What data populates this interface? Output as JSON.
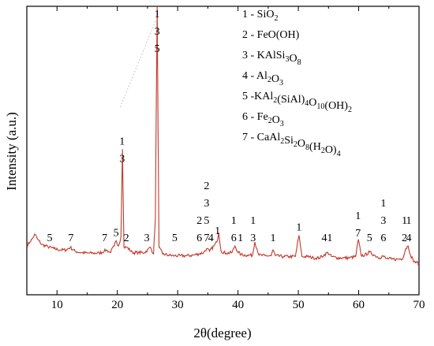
{
  "chart_data": {
    "type": "line",
    "xlabel": "2θ(degree)",
    "ylabel": "Intensity (a.u.)",
    "xlim": [
      5,
      70
    ],
    "xticks": [
      10,
      20,
      30,
      40,
      50,
      60,
      70
    ],
    "yticks_shown": false,
    "grid": false,
    "legend_position": "top-right",
    "line_color": "#c0392b",
    "series": [
      {
        "values_note": "",
        "x": [
          5,
          5.5,
          6,
          6.3,
          6.8,
          7.5,
          8.5,
          9.5,
          10.5,
          11.5,
          12.2,
          13,
          14,
          15,
          16,
          17,
          17.8,
          18.2,
          18.8,
          19.5,
          19.8,
          20.2,
          20.6,
          20.85,
          21.1,
          21.6,
          22.5,
          23.5,
          24.5,
          25,
          25.5,
          26,
          26.3,
          26.6,
          26.9,
          27.5,
          28.5,
          29.5,
          30.5,
          31.5,
          32.5,
          33.5,
          34.3,
          34.8,
          35.3,
          36,
          36.5,
          36.8,
          37.2,
          38,
          39,
          39.5,
          39.9,
          40.5,
          41.5,
          42.4,
          42.8,
          43.5,
          44.5,
          45.5,
          45.8,
          46.2,
          47.5,
          48.5,
          49.5,
          50.1,
          50.6,
          51.5,
          52.5,
          53.5,
          54.2,
          54.9,
          55.5,
          56.5,
          57.5,
          58.5,
          59.5,
          59.95,
          60.4,
          61,
          61.8,
          62.6,
          63.5,
          64,
          64.5,
          65.5,
          66.5,
          67.3,
          67.8,
          68.2,
          68.6,
          69.2,
          70
        ],
        "y": [
          0.095,
          0.11,
          0.125,
          0.14,
          0.12,
          0.1,
          0.092,
          0.085,
          0.08,
          0.08,
          0.09,
          0.075,
          0.07,
          0.068,
          0.068,
          0.068,
          0.075,
          0.08,
          0.07,
          0.095,
          0.115,
          0.095,
          0.13,
          0.46,
          0.09,
          0.09,
          0.07,
          0.07,
          0.07,
          0.08,
          0.09,
          0.065,
          0.2,
          1.0,
          0.09,
          0.065,
          0.06,
          0.058,
          0.058,
          0.058,
          0.06,
          0.065,
          0.07,
          0.085,
          0.075,
          0.095,
          0.11,
          0.145,
          0.075,
          0.068,
          0.07,
          0.095,
          0.075,
          0.062,
          0.06,
          0.06,
          0.11,
          0.06,
          0.058,
          0.058,
          0.08,
          0.058,
          0.055,
          0.055,
          0.055,
          0.135,
          0.055,
          0.055,
          0.05,
          0.05,
          0.06,
          0.07,
          0.055,
          0.05,
          0.05,
          0.05,
          0.055,
          0.12,
          0.06,
          0.06,
          0.072,
          0.06,
          0.05,
          0.058,
          0.048,
          0.045,
          0.045,
          0.048,
          0.085,
          0.095,
          0.06,
          0.035,
          0.03
        ]
      }
    ],
    "peak_annotations": [
      {
        "x": 8.8,
        "text": "5"
      },
      {
        "x": 12.3,
        "text": "7"
      },
      {
        "x": 17.9,
        "text": "7"
      },
      {
        "x": 19.8,
        "text": "5"
      },
      {
        "x": 21.5,
        "text": "2"
      },
      {
        "x": 20.8,
        "lines": [
          "1",
          "3"
        ]
      },
      {
        "x": 24.9,
        "text": "3"
      },
      {
        "x": 26.6,
        "lines": [
          "1",
          "3",
          "5"
        ]
      },
      {
        "x": 29.5,
        "text": "5"
      },
      {
        "x": 33.6,
        "lines": [
          "2",
          "6"
        ]
      },
      {
        "x": 34.8,
        "lines": [
          "2",
          "3",
          "5",
          "7"
        ]
      },
      {
        "x": 35.5,
        "text": "4"
      },
      {
        "x": 36.6,
        "text": "1"
      },
      {
        "x": 39.3,
        "lines": [
          "1",
          "6"
        ]
      },
      {
        "x": 40.4,
        "text": "1"
      },
      {
        "x": 42.5,
        "lines": [
          "1",
          "3"
        ]
      },
      {
        "x": 45.8,
        "text": "1"
      },
      {
        "x": 50.1,
        "text": "1"
      },
      {
        "x": 54.3,
        "text": "4"
      },
      {
        "x": 55.2,
        "text": "1"
      },
      {
        "x": 59.9,
        "lines": [
          "1",
          "7"
        ]
      },
      {
        "x": 61.8,
        "text": "5"
      },
      {
        "x": 64.1,
        "lines": [
          "1",
          "3",
          "6"
        ]
      },
      {
        "x": 67.6,
        "lines": [
          "1",
          "2"
        ]
      },
      {
        "x": 68.3,
        "lines": [
          "1",
          "4"
        ]
      }
    ],
    "legend": [
      {
        "num": "1",
        "parts": [
          [
            "n",
            " - SiO"
          ],
          [
            "s",
            "2"
          ]
        ]
      },
      {
        "num": "2",
        "parts": [
          [
            "n",
            " - FeO(OH)"
          ]
        ]
      },
      {
        "num": "3",
        "parts": [
          [
            "n",
            " - KAlSi"
          ],
          [
            "s",
            "3"
          ],
          [
            "n",
            "O"
          ],
          [
            "s",
            "8"
          ]
        ]
      },
      {
        "num": "4",
        "parts": [
          [
            "n",
            " - Al"
          ],
          [
            "s",
            "2"
          ],
          [
            "n",
            "O"
          ],
          [
            "s",
            "3"
          ]
        ]
      },
      {
        "num": "5",
        "parts": [
          [
            "n",
            " -KAl"
          ],
          [
            "s",
            "2"
          ],
          [
            "n",
            "(SiAl)"
          ],
          [
            "s",
            "4"
          ],
          [
            "n",
            "O"
          ],
          [
            "s",
            "10"
          ],
          [
            "n",
            "(OH)"
          ],
          [
            "s",
            "2"
          ]
        ]
      },
      {
        "num": "6",
        "parts": [
          [
            "n",
            " - Fe"
          ],
          [
            "s",
            "2"
          ],
          [
            "n",
            "O"
          ],
          [
            "s",
            "3"
          ]
        ]
      },
      {
        "num": "7",
        "parts": [
          [
            "n",
            " - CaAl"
          ],
          [
            "s",
            "2"
          ],
          [
            "n",
            "Si"
          ],
          [
            "s",
            "2"
          ],
          [
            "n",
            "O"
          ],
          [
            "s",
            "8"
          ],
          [
            "n",
            "(H"
          ],
          [
            "s",
            "2"
          ],
          [
            "n",
            "O)"
          ],
          [
            "s",
            "4"
          ]
        ]
      }
    ]
  }
}
